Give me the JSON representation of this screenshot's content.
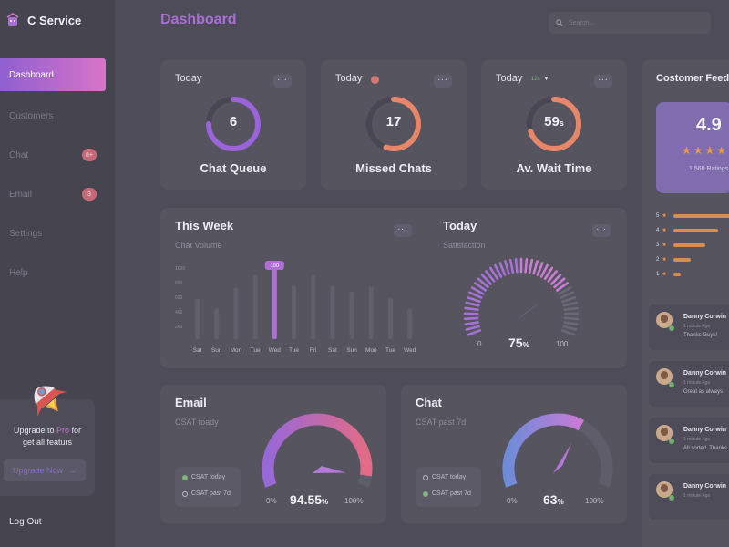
{
  "app": {
    "name": "C Service"
  },
  "header": {
    "title": "Dashboard",
    "search_placeholder": "Search..."
  },
  "nav": {
    "items": [
      {
        "label": "Dashboard",
        "active": true
      },
      {
        "label": "Customers"
      },
      {
        "label": "Chat",
        "badge": "8+"
      },
      {
        "label": "Email",
        "badge": "3"
      },
      {
        "label": "Settings"
      },
      {
        "label": "Help"
      }
    ],
    "logout": "Log Out"
  },
  "upgrade": {
    "line1_prefix": "Upgrade to ",
    "pro": "Pro",
    "line1_suffix": " for",
    "line2": "get all featurs",
    "button": "Upgrade Now",
    "button_arrow": "→"
  },
  "stats": [
    {
      "period": "Today",
      "value": "6",
      "unit": "",
      "label": "Chat Queue",
      "progress": 0.75,
      "color": "#9a63d8"
    },
    {
      "period": "Today",
      "value": "17",
      "unit": "",
      "label": "Missed Chats",
      "progress": 0.55,
      "color": "#e8866a",
      "badge": "!"
    },
    {
      "period": "Today",
      "value": "59",
      "unit": "s",
      "label": "Av. Wait Time",
      "progress": 0.7,
      "color": "#e8866a",
      "trend": "12s"
    }
  ],
  "week": {
    "title": "This Week",
    "subtitle": "Chat Volume",
    "tooltip": "100",
    "chart_data": {
      "type": "bar",
      "categories": [
        "Sat",
        "Sun",
        "Mon",
        "Tue",
        "Wed",
        "Tue",
        "Fri",
        "Sat",
        "Sun",
        "Mon",
        "Tue",
        "Wed"
      ],
      "values": [
        550,
        420,
        700,
        880,
        1000,
        730,
        880,
        730,
        650,
        720,
        560,
        420
      ],
      "highlight_index": 4,
      "ylim": [
        0,
        1000
      ],
      "yticks": [
        "1000",
        "800",
        "600",
        "400",
        "200"
      ]
    }
  },
  "satisfaction": {
    "title": "Today",
    "subtitle": "Satisfaction",
    "value": "75",
    "unit": "%",
    "min": "0",
    "max": "100",
    "fraction": 0.75
  },
  "email": {
    "title": "Email",
    "subtitle": "CSAT toady",
    "value": "94.55",
    "unit": "%",
    "min": "0%",
    "max": "100%",
    "fraction": 0.9455,
    "legend": [
      {
        "label": "CSAT today",
        "color": "#7fb57c"
      },
      {
        "label": "CSAT past 7d",
        "color": "#5b5a66"
      }
    ]
  },
  "chat": {
    "title": "Chat",
    "subtitle": "CSAT past 7d",
    "value": "63",
    "unit": "%",
    "min": "0%",
    "max": "100%",
    "fraction": 0.63,
    "legend": [
      {
        "label": "CSAT today",
        "color": "#5b5a66"
      },
      {
        "label": "CSAT past 7d",
        "color": "#7fb57c"
      }
    ]
  },
  "feedback": {
    "title": "Costomer Feedback",
    "score": "4.9",
    "stars": "★★★★★",
    "ratings_text": "1,560 Ratings",
    "rating_bars": [
      {
        "star": "5",
        "fraction": 0.95
      },
      {
        "star": "4",
        "fraction": 0.7
      },
      {
        "star": "3",
        "fraction": 0.5
      },
      {
        "star": "2",
        "fraction": 0.28
      },
      {
        "star": "1",
        "fraction": 0.12
      }
    ],
    "reviews": [
      {
        "name": "Danny Corwin",
        "time": "1 minute Ago",
        "text": "Thanks Guys!"
      },
      {
        "name": "Danny Corwin",
        "time": "1 minute Ago",
        "text": "Great as always"
      },
      {
        "name": "Danny Corwin",
        "time": "1 minute Ago",
        "text": "All sorted. Thanks"
      },
      {
        "name": "Danny Corwin",
        "time": "1 minute Ago",
        "text": ""
      }
    ]
  },
  "colors": {
    "accent": "#a96fd3",
    "orange": "#e8866a",
    "bg": "#4d4c58",
    "card": "#55545f"
  }
}
